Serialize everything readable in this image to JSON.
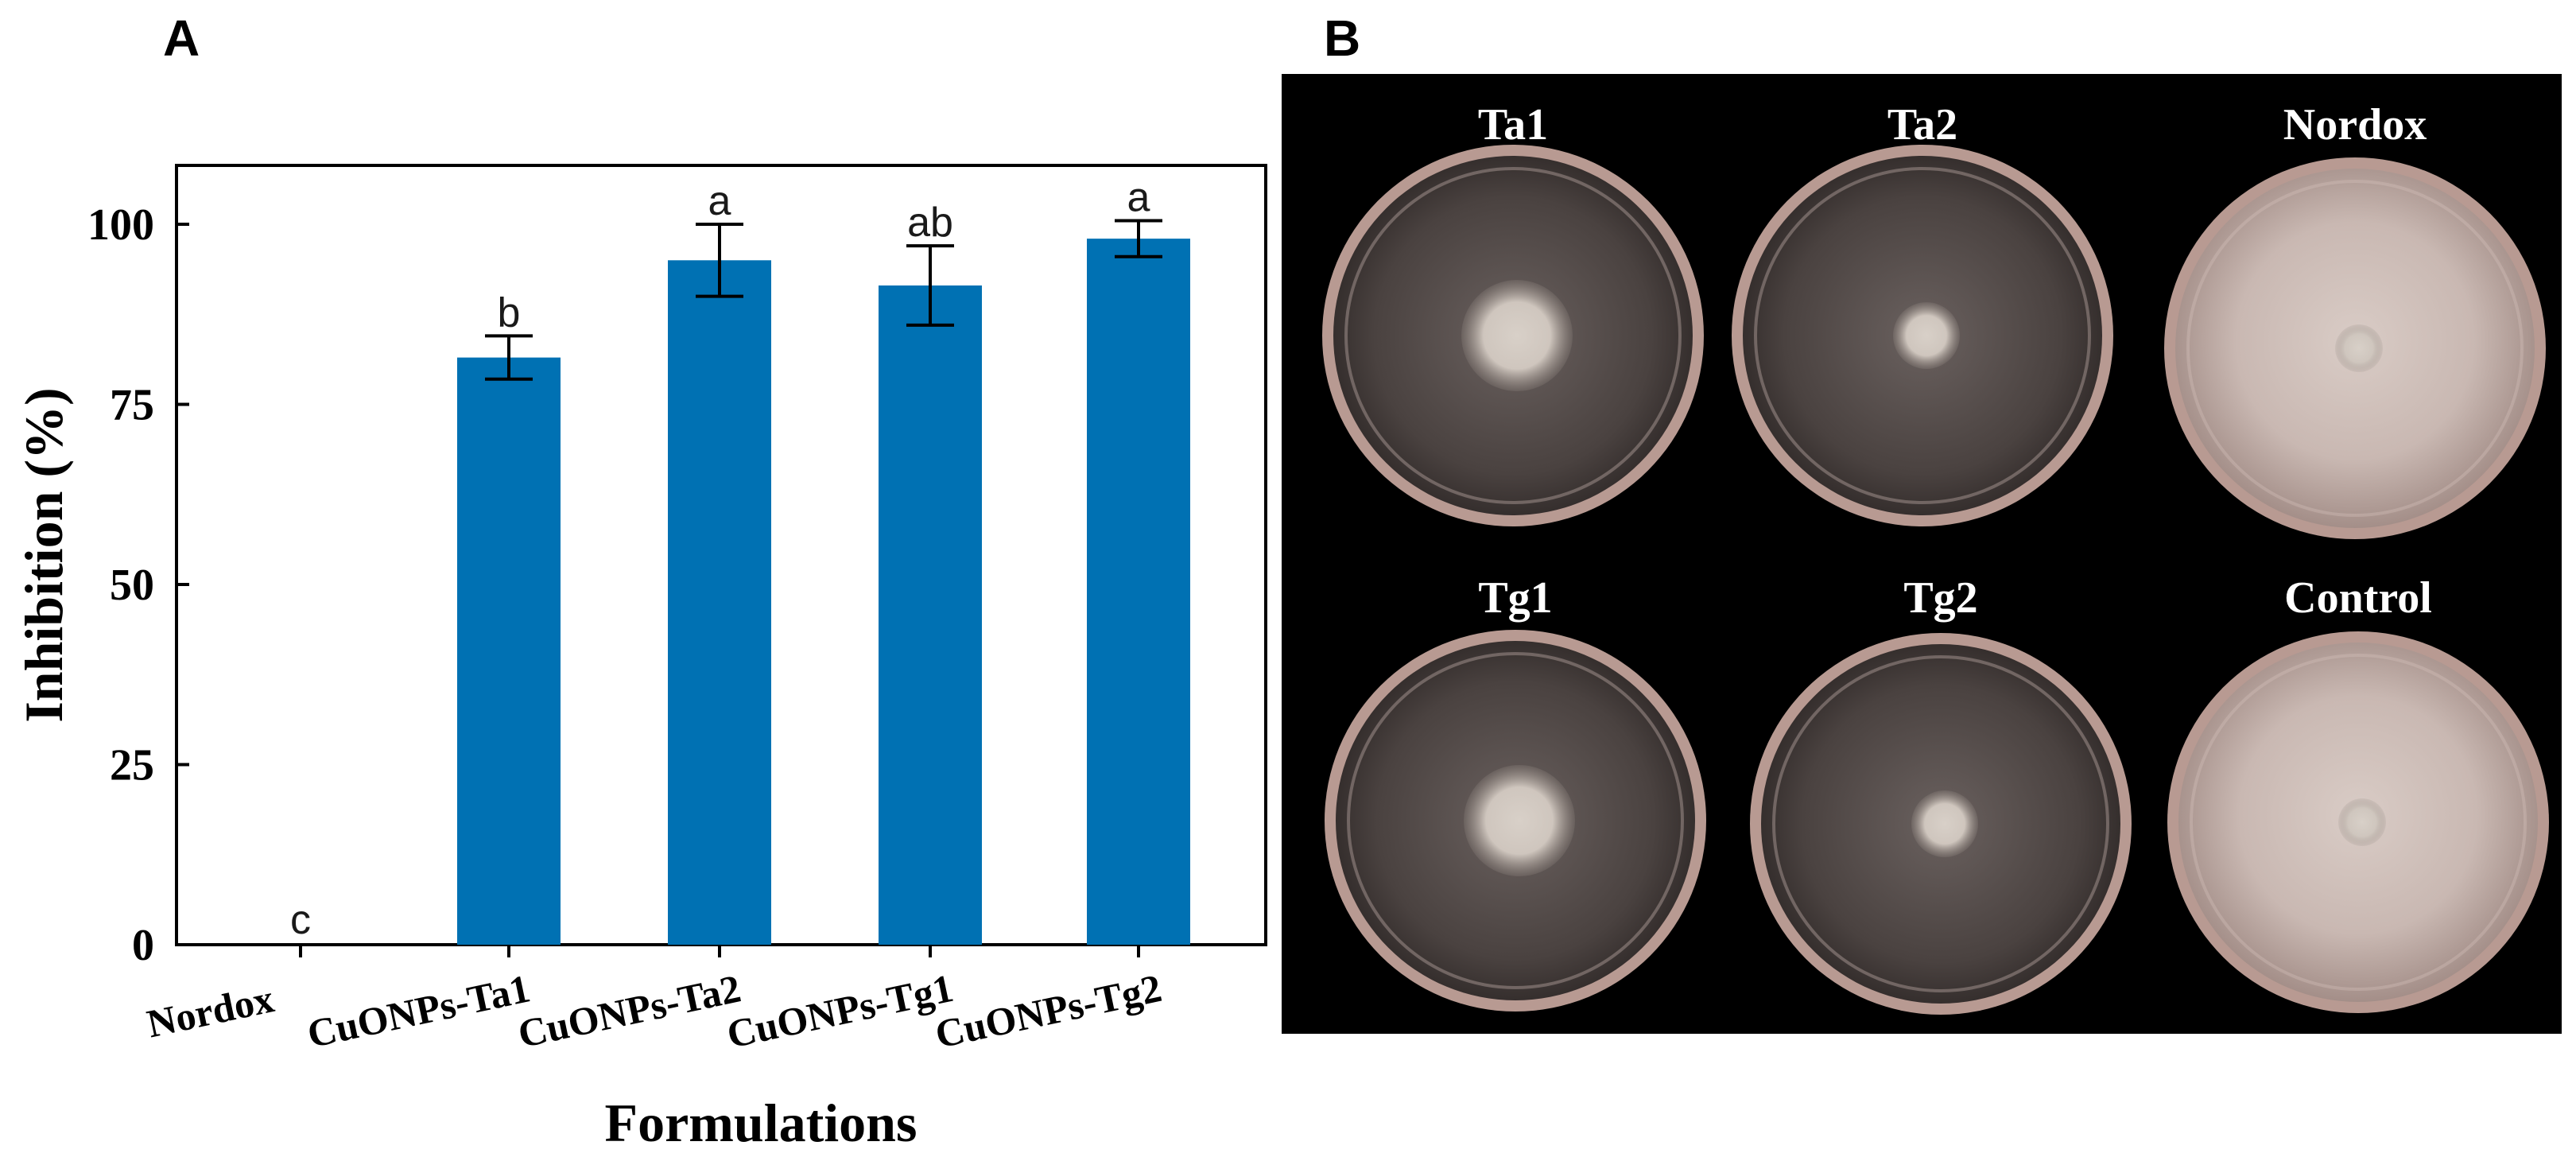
{
  "panels": {
    "left_letter": "A",
    "right_letter": "B"
  },
  "chart_data": {
    "type": "bar",
    "categories": [
      "Nordox",
      "CuONPs-Ta1",
      "CuONPs-Ta2",
      "CuONPs-Tg1",
      "CuONPs-Tg2"
    ],
    "values": [
      0,
      81.5,
      95,
      91.5,
      98
    ],
    "errors": [
      0,
      3,
      5,
      5.5,
      2.5
    ],
    "significance": [
      "c",
      "b",
      "a",
      "ab",
      "a"
    ],
    "title": "",
    "xlabel": "Formulations",
    "ylabel": "Inhibition (%)",
    "ylim": [
      0,
      108
    ],
    "yticks": [
      "0",
      "25",
      "50",
      "75",
      "100"
    ],
    "bar_color": "#0071b3",
    "grid": false,
    "legend": "none"
  },
  "photo_panel": {
    "background": "#000000",
    "plates": [
      {
        "label": "Ta1",
        "colony": "medium-fuzzy"
      },
      {
        "label": "Ta2",
        "colony": "small"
      },
      {
        "label": "Nordox",
        "colony": "full-growth"
      },
      {
        "label": "Tg1",
        "colony": "medium-fuzzy"
      },
      {
        "label": "Tg2",
        "colony": "small"
      },
      {
        "label": "Control",
        "colony": "full-growth"
      }
    ]
  }
}
